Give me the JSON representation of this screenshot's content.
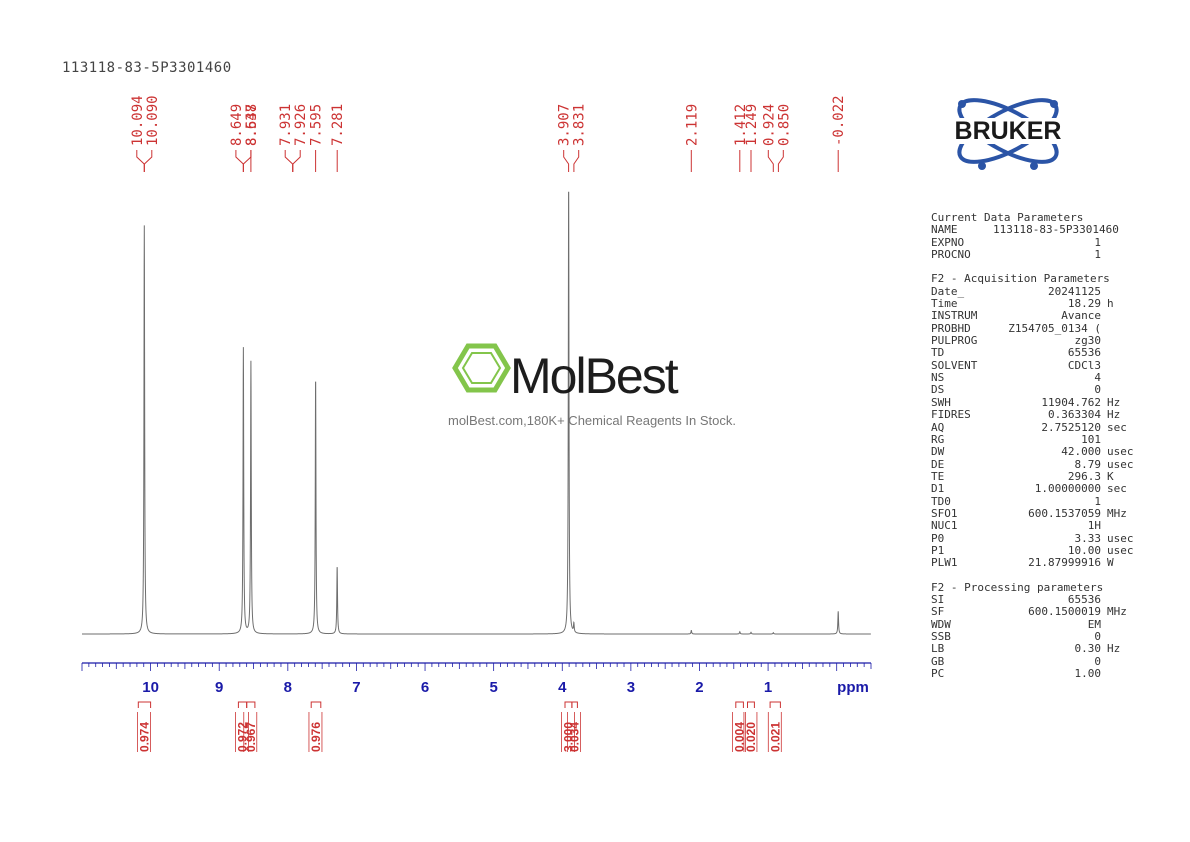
{
  "sample_id": "113118-83-5P3301460",
  "brand": {
    "logo_text": "BRUKER",
    "watermark_name": "MolBest",
    "watermark_tagline": "molBest.com,180K+ Chemical Reagents In Stock."
  },
  "colors": {
    "spectrum_line": "#6e6e6e",
    "peak_labels": "#cc3333",
    "axis": "#1a1aa8",
    "logo_blue": "#2b54a6",
    "watermark_green": "#7dc242"
  },
  "chart_data": {
    "type": "line",
    "title": "",
    "xlabel": "ppm",
    "ylabel": "",
    "x_reversed": true,
    "xlim": [
      11.0,
      -0.5
    ],
    "x_ticks": [
      10,
      9,
      8,
      7,
      6,
      5,
      4,
      3,
      2,
      1
    ],
    "x_tick_labels": [
      "10",
      "9",
      "8",
      "7",
      "6",
      "5",
      "4",
      "3",
      "2",
      "1"
    ],
    "peak_labels": [
      "10.094",
      "10.090",
      "8.649",
      "8.647",
      "8.538",
      "7.931",
      "7.926",
      "7.595",
      "7.281",
      "3.907",
      "3.831",
      "2.119",
      "1.412",
      "1.249",
      "0.924",
      "0.850",
      "-0.022"
    ],
    "peaks": [
      {
        "shift": 10.092,
        "intensity": 0.9
      },
      {
        "shift": 8.648,
        "intensity": 0.63
      },
      {
        "shift": 8.538,
        "intensity": 0.6
      },
      {
        "shift": 7.595,
        "intensity": 0.57
      },
      {
        "shift": 7.281,
        "intensity": 0.15
      },
      {
        "shift": 3.907,
        "intensity": 1.0
      },
      {
        "shift": 3.831,
        "intensity": 0.02
      },
      {
        "shift": 2.119,
        "intensity": 0.008
      },
      {
        "shift": 1.412,
        "intensity": 0.005
      },
      {
        "shift": 1.249,
        "intensity": 0.004
      },
      {
        "shift": 0.924,
        "intensity": 0.003
      },
      {
        "shift": -0.022,
        "intensity": 0.05
      }
    ],
    "integrals": [
      {
        "value": "0.974",
        "from": 10.18,
        "to": 10.0
      },
      {
        "value": "0.972",
        "from": 8.72,
        "to": 8.6
      },
      {
        "value": "0.967",
        "from": 8.6,
        "to": 8.48
      },
      {
        "value": "0.976",
        "from": 7.66,
        "to": 7.52
      },
      {
        "value": "3.000",
        "from": 3.96,
        "to": 3.86
      },
      {
        "value": "0.034",
        "from": 3.86,
        "to": 3.78
      },
      {
        "value": "0.004",
        "from": 1.47,
        "to": 1.36
      },
      {
        "value": "0.020",
        "from": 1.3,
        "to": 1.2
      },
      {
        "value": "0.021",
        "from": 0.97,
        "to": 0.82
      }
    ]
  },
  "parameters": [
    {
      "title": "Current Data Parameters",
      "rows": [
        {
          "name": "NAME",
          "value": "113118-83-5P3301460",
          "unit": ""
        },
        {
          "name": "EXPNO",
          "value": "1",
          "unit": ""
        },
        {
          "name": "PROCNO",
          "value": "1",
          "unit": ""
        }
      ]
    },
    {
      "title": "F2 - Acquisition Parameters",
      "rows": [
        {
          "name": "Date_",
          "value": "20241125",
          "unit": ""
        },
        {
          "name": "Time",
          "value": "18.29",
          "unit": "h"
        },
        {
          "name": "INSTRUM",
          "value": "Avance",
          "unit": ""
        },
        {
          "name": "PROBHD",
          "value": "Z154705_0134 (",
          "unit": ""
        },
        {
          "name": "PULPROG",
          "value": "zg30",
          "unit": ""
        },
        {
          "name": "TD",
          "value": "65536",
          "unit": ""
        },
        {
          "name": "SOLVENT",
          "value": "CDCl3",
          "unit": ""
        },
        {
          "name": "NS",
          "value": "4",
          "unit": ""
        },
        {
          "name": "DS",
          "value": "0",
          "unit": ""
        },
        {
          "name": "SWH",
          "value": "11904.762",
          "unit": "Hz"
        },
        {
          "name": "FIDRES",
          "value": "0.363304",
          "unit": "Hz"
        },
        {
          "name": "AQ",
          "value": "2.7525120",
          "unit": "sec"
        },
        {
          "name": "RG",
          "value": "101",
          "unit": ""
        },
        {
          "name": "DW",
          "value": "42.000",
          "unit": "usec"
        },
        {
          "name": "DE",
          "value": "8.79",
          "unit": "usec"
        },
        {
          "name": "TE",
          "value": "296.3",
          "unit": "K"
        },
        {
          "name": "D1",
          "value": "1.00000000",
          "unit": "sec"
        },
        {
          "name": "TD0",
          "value": "1",
          "unit": ""
        },
        {
          "name": "SFO1",
          "value": "600.1537059",
          "unit": "MHz"
        },
        {
          "name": "NUC1",
          "value": "1H",
          "unit": ""
        },
        {
          "name": "P0",
          "value": "3.33",
          "unit": "usec"
        },
        {
          "name": "P1",
          "value": "10.00",
          "unit": "usec"
        },
        {
          "name": "PLW1",
          "value": "21.87999916",
          "unit": "W"
        }
      ]
    },
    {
      "title": "F2 - Processing parameters",
      "rows": [
        {
          "name": "SI",
          "value": "65536",
          "unit": ""
        },
        {
          "name": "SF",
          "value": "600.1500019",
          "unit": "MHz"
        },
        {
          "name": "WDW",
          "value": "EM",
          "unit": ""
        },
        {
          "name": "SSB",
          "value": "0",
          "unit": ""
        },
        {
          "name": "LB",
          "value": "0.30",
          "unit": "Hz"
        },
        {
          "name": "GB",
          "value": "0",
          "unit": ""
        },
        {
          "name": "PC",
          "value": "1.00",
          "unit": ""
        }
      ]
    }
  ]
}
